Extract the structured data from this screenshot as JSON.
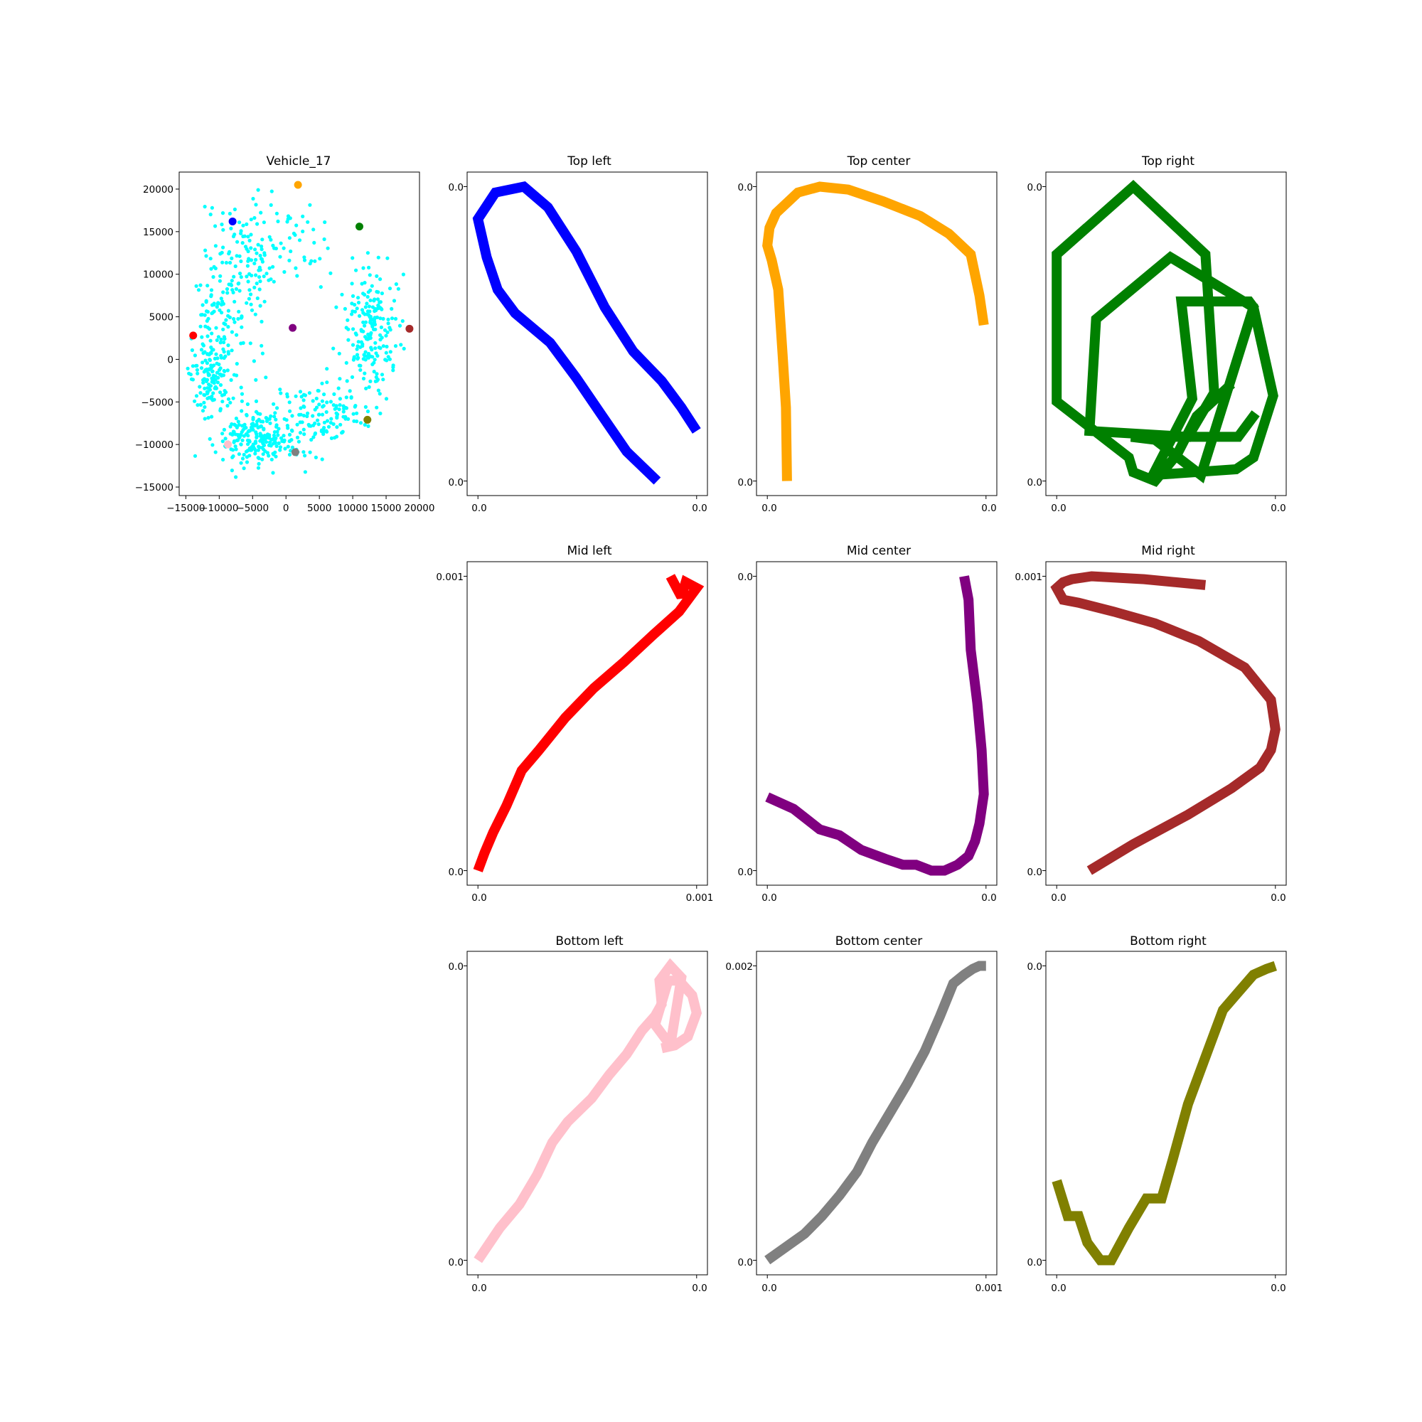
{
  "chart_data": [
    {
      "id": "scatter",
      "type": "scatter",
      "title": "Vehicle_17",
      "xlim": [
        -16000,
        20000
      ],
      "ylim": [
        -16000,
        22000
      ],
      "x_ticks": [
        -15000,
        -10000,
        -5000,
        0,
        5000,
        10000,
        15000,
        20000
      ],
      "x_tick_labels": [
        "−15000",
        "−10000",
        "−5000",
        "0",
        "5000",
        "10000",
        "15000",
        "20000"
      ],
      "y_ticks": [
        -15000,
        -10000,
        -5000,
        0,
        5000,
        10000,
        15000,
        20000
      ],
      "y_tick_labels": [
        "−15000",
        "−10000",
        "−5000",
        "0",
        "5000",
        "10000",
        "15000",
        "20000"
      ],
      "cloud_color": "#00ffff",
      "highlights": [
        {
          "x": -8000,
          "y": 16200,
          "color": "#0000ff"
        },
        {
          "x": 1800,
          "y": 20500,
          "color": "#ffa500"
        },
        {
          "x": 11000,
          "y": 15600,
          "color": "#008000"
        },
        {
          "x": -13900,
          "y": 2800,
          "color": "#ff0000"
        },
        {
          "x": 1000,
          "y": 3700,
          "color": "#800080"
        },
        {
          "x": 18500,
          "y": 3600,
          "color": "#a52a2a"
        },
        {
          "x": -8700,
          "y": -10000,
          "color": "#ffc0cb"
        },
        {
          "x": 1400,
          "y": -10900,
          "color": "#808080"
        },
        {
          "x": 12200,
          "y": -7100,
          "color": "#808000"
        }
      ]
    },
    {
      "id": "top-left",
      "type": "line",
      "title": "Top left",
      "color": "#0000ff",
      "x_tick_labels": [
        "0.0",
        "0.0"
      ],
      "y_tick_labels": [
        "0.0",
        "0.0"
      ],
      "x": [
        0.82,
        0.68,
        0.56,
        0.45,
        0.33,
        0.17,
        0.17,
        0.09,
        0.04,
        0.0,
        0.08,
        0.21,
        0.32,
        0.45,
        0.58,
        0.71,
        0.84,
        0.93,
        1.0
      ],
      "y": [
        0.0,
        0.1,
        0.23,
        0.35,
        0.47,
        0.57,
        0.57,
        0.65,
        0.76,
        0.89,
        0.98,
        1.0,
        0.93,
        0.78,
        0.59,
        0.44,
        0.34,
        0.25,
        0.17
      ]
    },
    {
      "id": "top-center",
      "type": "line",
      "title": "Top center",
      "color": "#ffa500",
      "x_tick_labels": [
        "0.0",
        "0.0"
      ],
      "y_tick_labels": [
        "0.0",
        "0.0"
      ],
      "x": [
        0.09,
        0.085,
        0.07,
        0.05,
        0.02,
        0.0,
        0.01,
        0.04,
        0.14,
        0.24,
        0.37,
        0.53,
        0.7,
        0.83,
        0.93,
        0.97,
        0.99
      ],
      "y": [
        0.0,
        0.25,
        0.43,
        0.65,
        0.75,
        0.8,
        0.86,
        0.91,
        0.98,
        1.0,
        0.99,
        0.95,
        0.9,
        0.84,
        0.77,
        0.63,
        0.53
      ]
    },
    {
      "id": "top-right",
      "type": "line",
      "title": "Top right",
      "color": "#008000",
      "x_tick_labels": [
        "0.0",
        "0.0"
      ],
      "y_tick_labels": [
        "0.0",
        "0.0"
      ],
      "x": [
        0.8,
        0.64,
        0.55,
        0.45,
        0.35,
        0.33,
        0.0,
        0.0,
        0.35,
        0.68,
        0.72,
        0.6,
        0.15,
        0.18,
        0.52,
        0.9,
        0.99,
        0.9,
        0.82,
        0.44,
        0.62,
        0.57,
        0.88,
        0.9,
        0.66,
        0.45,
        0.34,
        0.83,
        0.91
      ],
      "y": [
        0.33,
        0.22,
        0.09,
        0.0,
        0.03,
        0.08,
        0.27,
        0.77,
        1.0,
        0.77,
        0.3,
        0.15,
        0.17,
        0.55,
        0.76,
        0.59,
        0.29,
        0.08,
        0.04,
        0.02,
        0.28,
        0.61,
        0.61,
        0.59,
        0.02,
        0.14,
        0.15,
        0.15,
        0.23
      ]
    },
    {
      "id": "mid-left",
      "type": "line",
      "title": "Mid left",
      "color": "#ff0000",
      "x_tick_labels": [
        "0.0",
        "0.001"
      ],
      "y_tick_labels": [
        "0.0",
        "0.001"
      ],
      "x": [
        0.0,
        0.03,
        0.07,
        0.13,
        0.2,
        0.28,
        0.4,
        0.53,
        0.67,
        0.8,
        0.92,
        0.96,
        1.0,
        0.95,
        0.93,
        0.88
      ],
      "y": [
        0.0,
        0.06,
        0.13,
        0.22,
        0.34,
        0.41,
        0.52,
        0.62,
        0.71,
        0.8,
        0.88,
        0.92,
        0.96,
        0.98,
        0.93,
        1.0
      ],
      "y_ticks_frac": [
        0.0,
        1.0
      ]
    },
    {
      "id": "mid-center",
      "type": "line",
      "title": "Mid center",
      "color": "#800080",
      "x_tick_labels": [
        "0.0",
        "0.0"
      ],
      "y_tick_labels": [
        "0.0",
        "0.0"
      ],
      "x": [
        0.0,
        0.12,
        0.24,
        0.33,
        0.43,
        0.54,
        0.62,
        0.68,
        0.75,
        0.81,
        0.87,
        0.92,
        0.95,
        0.97,
        0.99,
        0.98,
        0.96,
        0.93,
        0.92,
        0.9
      ],
      "y": [
        0.25,
        0.21,
        0.14,
        0.12,
        0.07,
        0.04,
        0.02,
        0.02,
        0.0,
        0.0,
        0.02,
        0.05,
        0.1,
        0.16,
        0.26,
        0.41,
        0.57,
        0.75,
        0.92,
        1.0
      ]
    },
    {
      "id": "mid-right",
      "type": "line",
      "title": "Mid right",
      "color": "#a52a2a",
      "x_tick_labels": [
        "0.0",
        "0.0"
      ],
      "y_tick_labels": [
        "0.0",
        "0.001"
      ],
      "x": [
        0.15,
        0.35,
        0.6,
        0.8,
        0.93,
        0.98,
        1.0,
        0.98,
        0.86,
        0.65,
        0.45,
        0.26,
        0.1,
        0.03,
        0.0,
        0.03,
        0.07,
        0.16,
        0.4,
        0.68
      ],
      "y": [
        0.0,
        0.09,
        0.19,
        0.28,
        0.35,
        0.41,
        0.48,
        0.58,
        0.69,
        0.78,
        0.84,
        0.88,
        0.91,
        0.92,
        0.96,
        0.98,
        0.99,
        1.0,
        0.99,
        0.97
      ],
      "y_ticks_frac": [
        0.0,
        1.0
      ]
    },
    {
      "id": "bottom-left",
      "type": "line",
      "title": "Bottom left",
      "color": "#ffc0cb",
      "x_tick_labels": [
        "0.0",
        "0.0"
      ],
      "y_tick_labels": [
        "0.0",
        "0.0"
      ],
      "x": [
        0.0,
        0.1,
        0.19,
        0.27,
        0.34,
        0.41,
        0.52,
        0.6,
        0.68,
        0.75,
        0.81,
        0.84,
        0.83,
        0.88,
        0.93,
        0.88,
        0.81,
        0.87,
        0.92,
        0.98,
        1.0,
        0.96,
        0.9,
        0.84
      ],
      "y": [
        0.0,
        0.11,
        0.19,
        0.29,
        0.4,
        0.47,
        0.55,
        0.63,
        0.7,
        0.78,
        0.83,
        0.87,
        0.95,
        1.0,
        0.96,
        0.73,
        0.8,
        0.95,
        0.95,
        0.9,
        0.84,
        0.76,
        0.73,
        0.72
      ]
    },
    {
      "id": "bottom-center",
      "type": "line",
      "title": "Bottom center",
      "color": "#808080",
      "x_tick_labels": [
        "0.0",
        "0.001"
      ],
      "y_tick_labels": [
        "0.0",
        "0.002"
      ],
      "x": [
        0.0,
        0.17,
        0.25,
        0.33,
        0.41,
        0.48,
        0.56,
        0.64,
        0.72,
        0.79,
        0.85,
        0.9,
        0.94,
        0.97,
        0.99,
        1.0
      ],
      "y": [
        0.0,
        0.09,
        0.15,
        0.22,
        0.3,
        0.4,
        0.5,
        0.6,
        0.71,
        0.83,
        0.94,
        0.97,
        0.99,
        1.0,
        1.0,
        1.0
      ],
      "y_ticks_frac": [
        0.0,
        1.0
      ]
    },
    {
      "id": "bottom-right",
      "type": "line",
      "title": "Bottom right",
      "color": "#808000",
      "x_tick_labels": [
        "0.0",
        "0.0"
      ],
      "y_tick_labels": [
        "0.0",
        "0.0"
      ],
      "x": [
        0.0,
        0.05,
        0.1,
        0.14,
        0.2,
        0.25,
        0.33,
        0.41,
        0.48,
        0.53,
        0.6,
        0.66,
        0.7,
        0.76,
        0.83,
        0.9,
        0.96,
        1.0
      ],
      "y": [
        0.27,
        0.15,
        0.15,
        0.06,
        0.0,
        0.0,
        0.11,
        0.21,
        0.21,
        0.34,
        0.53,
        0.65,
        0.73,
        0.85,
        0.91,
        0.97,
        0.99,
        1.0
      ]
    }
  ]
}
